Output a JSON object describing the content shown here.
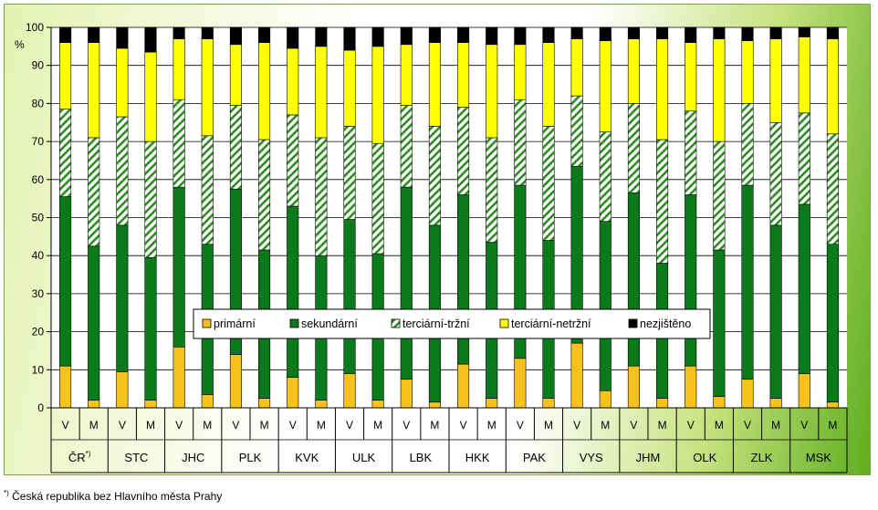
{
  "footnote": {
    "marker": "*)",
    "text": "Česká republika bez Hlavního města Prahy"
  },
  "colors": {
    "primarni": "#f7c21c",
    "sekundarni": "#0b7a1a",
    "terciarni_trzni_stripe": "#2e8b22",
    "terciarni_netrzni": "#ffff00",
    "nezjisteno": "#000000",
    "plot_background": "#ffffff",
    "gridline": "#000000"
  },
  "chart_data": {
    "type": "bar",
    "stacked": true,
    "ylabel": "%",
    "ylim": [
      0,
      100
    ],
    "yticks": [
      0,
      10,
      20,
      30,
      40,
      50,
      60,
      70,
      80,
      90,
      100
    ],
    "grid": true,
    "legend_position": "center",
    "groups": [
      {
        "label": "ČR",
        "label_suffix": "*)"
      },
      {
        "label": "STC"
      },
      {
        "label": "JHC"
      },
      {
        "label": "PLK"
      },
      {
        "label": "KVK"
      },
      {
        "label": "ULK"
      },
      {
        "label": "LBK"
      },
      {
        "label": "HKK"
      },
      {
        "label": "PAK"
      },
      {
        "label": "VYS"
      },
      {
        "label": "JHM"
      },
      {
        "label": "OLK"
      },
      {
        "label": "ZLK"
      },
      {
        "label": "MSK"
      }
    ],
    "subcategories": [
      "V",
      "M"
    ],
    "series": [
      {
        "name": "primární",
        "pattern": "solid",
        "values": [
          11,
          2,
          9.5,
          2,
          16,
          3.5,
          14,
          2.5,
          8,
          2,
          9,
          2,
          7.5,
          1.5,
          11.5,
          2.5,
          13,
          2.5,
          17,
          4.5,
          11,
          2.5,
          11,
          3,
          7.5,
          2.5,
          9,
          1.5
        ]
      },
      {
        "name": "sekundární",
        "pattern": "solid",
        "values": [
          44.5,
          40.5,
          38.5,
          37.5,
          42,
          39.5,
          43.5,
          39,
          45,
          38,
          40.5,
          38.5,
          50.5,
          46.5,
          44.5,
          41,
          45.5,
          41.5,
          46.5,
          44.5,
          45.5,
          35.5,
          45,
          38.5,
          51,
          45.5,
          44.5,
          41.5
        ]
      },
      {
        "name": "terciární-tržní",
        "pattern": "hatched",
        "values": [
          23,
          28.5,
          28.5,
          30.5,
          23,
          28.5,
          22,
          29,
          24,
          31,
          24.5,
          29,
          21.5,
          26,
          23,
          27.5,
          22.5,
          30,
          18.5,
          23.5,
          23.5,
          32.5,
          22,
          28.5,
          21.5,
          27,
          24,
          29
        ]
      },
      {
        "name": "terciární-netržní",
        "pattern": "solid",
        "values": [
          17.5,
          25,
          18,
          23.5,
          16,
          25.5,
          16,
          25.5,
          17.5,
          24,
          20,
          25.5,
          16,
          22,
          17,
          24.5,
          14.5,
          22,
          15,
          24,
          17,
          26.5,
          18,
          27,
          16.5,
          22,
          20,
          25
        ]
      },
      {
        "name": "nezjištěno",
        "pattern": "solid",
        "values": [
          4,
          4,
          5.5,
          6.5,
          3,
          3,
          4.5,
          4,
          5.5,
          5,
          6,
          5,
          4.5,
          4,
          4,
          4.5,
          4.5,
          4,
          3,
          3.5,
          3,
          3,
          4,
          3,
          3.5,
          3,
          2.5,
          3
        ]
      }
    ]
  }
}
